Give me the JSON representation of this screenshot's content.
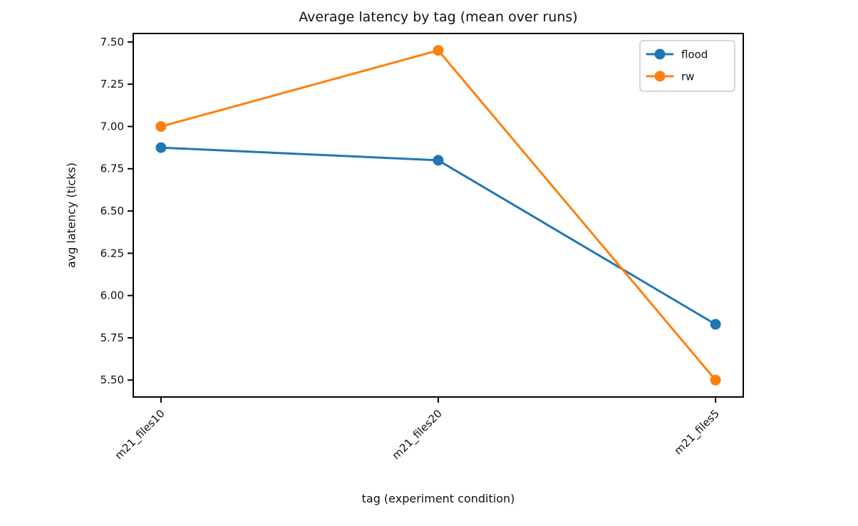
{
  "chart_data": {
    "type": "line",
    "title": "Average latency by tag (mean over runs)",
    "xlabel": "tag (experiment condition)",
    "ylabel": "avg latency (ticks)",
    "categories": [
      "m21_files10",
      "m21_files20",
      "m21_files5"
    ],
    "series": [
      {
        "name": "flood",
        "color": "#1f77b4",
        "values": [
          6.875,
          6.8,
          5.83
        ]
      },
      {
        "name": "rw",
        "color": "#ff7f0e",
        "values": [
          7.0,
          7.45,
          5.5
        ]
      }
    ],
    "ylim": [
      5.4,
      7.55
    ],
    "yticks": [
      5.5,
      5.75,
      6.0,
      6.25,
      6.5,
      6.75,
      7.0,
      7.25,
      7.5
    ],
    "ytick_decimals": 2,
    "x_margin": 0.1,
    "x_tick_rotation": 45,
    "grid": false,
    "marker": "circle",
    "legend": {
      "position": "upper right",
      "entries": [
        "flood",
        "rw"
      ]
    },
    "background": "#ffffff",
    "axis_color": "#000000"
  }
}
